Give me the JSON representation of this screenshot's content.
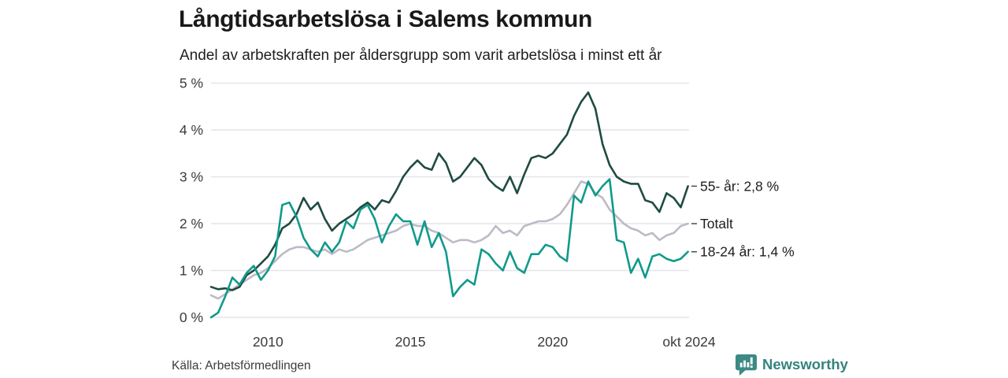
{
  "title": "Långtidsarbetslösa i Salems kommun",
  "subtitle": "Andel av arbetskraften per åldersgrupp som varit arbetslösa i minst ett år",
  "source": "Källa: Arbetsförmedlingen",
  "branding": {
    "name": "Newsworthy",
    "color": "#35837e"
  },
  "chart_data": {
    "type": "line",
    "title": "Långtidsarbetslösa i Salems kommun",
    "subtitle": "Andel av arbetskraften per åldersgrupp som varit arbetslösa i minst ett år",
    "ylabel": "",
    "xlabel": "",
    "ylim": [
      0,
      5
    ],
    "xlim": [
      2008,
      2024.79
    ],
    "grid": "horizontal",
    "legend_position": "right-end-labels",
    "colors": {
      "grid": "#e6e4ec",
      "axis_text": "#3a3a3a",
      "end_label_text": "#1d1d1d",
      "end_tick": "#4a4a4a"
    },
    "y_ticks": [
      {
        "v": 0,
        "label": "0 %"
      },
      {
        "v": 1,
        "label": "1 %"
      },
      {
        "v": 2,
        "label": "2 %"
      },
      {
        "v": 3,
        "label": "3 %"
      },
      {
        "v": 4,
        "label": "4 %"
      },
      {
        "v": 5,
        "label": "5 %"
      }
    ],
    "x_ticks": [
      {
        "t": 2010,
        "label": "2010"
      },
      {
        "t": 2015,
        "label": "2015"
      },
      {
        "t": 2020,
        "label": "2020"
      },
      {
        "t": 2024.79,
        "label": "okt 2024"
      }
    ],
    "x": [
      2008.0,
      2008.25,
      2008.5,
      2008.75,
      2009.0,
      2009.25,
      2009.5,
      2009.75,
      2010.0,
      2010.25,
      2010.5,
      2010.75,
      2011.0,
      2011.25,
      2011.5,
      2011.75,
      2012.0,
      2012.25,
      2012.5,
      2012.75,
      2013.0,
      2013.25,
      2013.5,
      2013.75,
      2014.0,
      2014.25,
      2014.5,
      2014.75,
      2015.0,
      2015.25,
      2015.5,
      2015.75,
      2016.0,
      2016.25,
      2016.5,
      2016.75,
      2017.0,
      2017.25,
      2017.5,
      2017.75,
      2018.0,
      2018.25,
      2018.5,
      2018.75,
      2019.0,
      2019.25,
      2019.5,
      2019.75,
      2020.0,
      2020.25,
      2020.5,
      2020.75,
      2021.0,
      2021.25,
      2021.5,
      2021.75,
      2022.0,
      2022.25,
      2022.5,
      2022.75,
      2023.0,
      2023.25,
      2023.5,
      2023.75,
      2024.0,
      2024.25,
      2024.5,
      2024.75
    ],
    "series": [
      {
        "name": "Totalt",
        "end_label": "Totalt",
        "color": "#bdbac5",
        "last_value_label": null,
        "values": [
          0.47,
          0.4,
          0.5,
          0.6,
          0.7,
          0.8,
          0.9,
          0.95,
          1.05,
          1.2,
          1.35,
          1.45,
          1.5,
          1.5,
          1.45,
          1.4,
          1.45,
          1.35,
          1.45,
          1.4,
          1.45,
          1.55,
          1.65,
          1.7,
          1.75,
          1.8,
          1.85,
          1.95,
          2.0,
          1.95,
          1.95,
          1.85,
          1.8,
          1.7,
          1.6,
          1.65,
          1.65,
          1.6,
          1.65,
          1.75,
          1.95,
          1.8,
          1.85,
          1.75,
          1.95,
          2.0,
          2.05,
          2.05,
          2.1,
          2.2,
          2.4,
          2.65,
          2.9,
          2.85,
          2.65,
          2.55,
          2.3,
          2.15,
          2.0,
          1.9,
          1.85,
          1.75,
          1.8,
          1.65,
          1.75,
          1.8,
          1.95,
          2.0
        ]
      },
      {
        "name": "55- år",
        "end_label": "55- år: 2,8 %",
        "color": "#1f4b43",
        "last_value_label": "2,8 %",
        "values": [
          0.65,
          0.6,
          0.62,
          0.58,
          0.65,
          0.9,
          1.0,
          1.15,
          1.3,
          1.55,
          1.9,
          2.0,
          2.2,
          2.55,
          2.3,
          2.45,
          2.1,
          1.85,
          2.0,
          2.1,
          2.2,
          2.35,
          2.45,
          2.3,
          2.5,
          2.45,
          2.7,
          3.0,
          3.2,
          3.35,
          3.2,
          3.15,
          3.5,
          3.3,
          2.9,
          3.0,
          3.2,
          3.4,
          3.25,
          2.95,
          2.8,
          2.7,
          3.0,
          2.65,
          3.05,
          3.4,
          3.45,
          3.4,
          3.5,
          3.7,
          3.9,
          4.3,
          4.6,
          4.8,
          4.45,
          3.7,
          3.25,
          3.0,
          2.9,
          2.85,
          2.85,
          2.5,
          2.45,
          2.25,
          2.65,
          2.55,
          2.35,
          2.8
        ]
      },
      {
        "name": "18-24 år",
        "end_label": "18-24 år: 1,4 %",
        "color": "#109a8b",
        "last_value_label": "1,4 %",
        "values": [
          0.0,
          0.1,
          0.45,
          0.85,
          0.7,
          0.95,
          1.1,
          0.8,
          1.0,
          1.3,
          2.4,
          2.45,
          2.15,
          1.7,
          1.45,
          1.3,
          1.6,
          1.4,
          1.6,
          2.05,
          1.9,
          2.3,
          2.4,
          2.1,
          1.6,
          1.95,
          2.2,
          2.05,
          2.05,
          1.55,
          2.05,
          1.5,
          1.8,
          1.4,
          0.45,
          0.65,
          0.8,
          0.7,
          1.45,
          1.35,
          1.15,
          1.0,
          1.4,
          1.05,
          0.95,
          1.35,
          1.35,
          1.55,
          1.5,
          1.3,
          1.2,
          2.6,
          2.45,
          2.9,
          2.6,
          2.8,
          2.95,
          1.65,
          1.6,
          0.95,
          1.25,
          0.85,
          1.3,
          1.35,
          1.25,
          1.2,
          1.25,
          1.4
        ]
      }
    ]
  }
}
